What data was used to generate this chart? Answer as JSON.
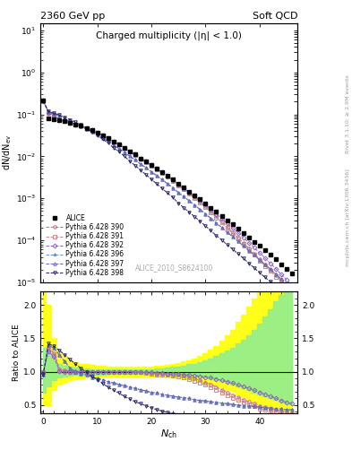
{
  "title_left": "2360 GeV pp",
  "title_right": "Soft QCD",
  "main_title": "Charged multiplicity (|η| < 1.0)",
  "ylabel_main": "dN/dN$_{ev}$",
  "ylabel_ratio": "Ratio to ALICE",
  "xlabel": "N_{ch}",
  "watermark": "ALICE_2010_S8624100",
  "right_label": "mcplots.cern.ch [arXiv:1306.3436]",
  "right_label2": "Rivet 3.1.10; ≥ 2.9M events",
  "ylim_main": [
    1e-05,
    15
  ],
  "ylim_ratio": [
    0.38,
    2.2
  ],
  "xlim": [
    -0.5,
    47
  ],
  "alice_x": [
    0,
    1,
    2,
    3,
    4,
    5,
    6,
    7,
    8,
    9,
    10,
    11,
    12,
    13,
    14,
    15,
    16,
    17,
    18,
    19,
    20,
    21,
    22,
    23,
    24,
    25,
    26,
    27,
    28,
    29,
    30,
    31,
    32,
    33,
    34,
    35,
    36,
    37,
    38,
    39,
    40,
    41,
    42,
    43,
    44,
    45,
    46
  ],
  "alice_y": [
    0.215,
    0.082,
    0.077,
    0.073,
    0.068,
    0.063,
    0.058,
    0.053,
    0.047,
    0.042,
    0.036,
    0.031,
    0.027,
    0.022,
    0.019,
    0.016,
    0.013,
    0.011,
    0.009,
    0.0075,
    0.0062,
    0.0051,
    0.0042,
    0.0034,
    0.0028,
    0.0022,
    0.0018,
    0.00145,
    0.00118,
    0.00095,
    0.00076,
    0.0006,
    0.00048,
    0.00038,
    0.0003,
    0.00024,
    0.00019,
    0.00015,
    0.000118,
    9.3e-05,
    7.3e-05,
    5.7e-05,
    4.5e-05,
    3.5e-05,
    2.7e-05,
    2.1e-05,
    1.6e-05
  ],
  "pythia_tunes": [
    {
      "label": "Pythia 6.428 390",
      "color": "#cc6688",
      "marker": "o",
      "linestyle": "--"
    },
    {
      "label": "Pythia 6.428 391",
      "color": "#cc8888",
      "marker": "s",
      "linestyle": "--"
    },
    {
      "label": "Pythia 6.428 392",
      "color": "#8866bb",
      "marker": "D",
      "linestyle": "--"
    },
    {
      "label": "Pythia 6.428 396",
      "color": "#6699bb",
      "marker": "*",
      "linestyle": "--"
    },
    {
      "label": "Pythia 6.428 397",
      "color": "#6666bb",
      "marker": "^",
      "linestyle": "--"
    },
    {
      "label": "Pythia 6.428 398",
      "color": "#222266",
      "marker": "v",
      "linestyle": "--"
    }
  ],
  "ratio_390": [
    1.0,
    1.35,
    1.28,
    1.04,
    1.02,
    1.01,
    1.01,
    1.0,
    1.0,
    1.0,
    1.0,
    1.0,
    1.0,
    1.0,
    1.0,
    1.0,
    1.0,
    0.99,
    0.99,
    0.99,
    0.98,
    0.97,
    0.97,
    0.96,
    0.96,
    0.95,
    0.94,
    0.92,
    0.9,
    0.87,
    0.84,
    0.81,
    0.77,
    0.73,
    0.69,
    0.65,
    0.62,
    0.58,
    0.55,
    0.52,
    0.49,
    0.47,
    0.45,
    0.43,
    0.41,
    0.39,
    0.38
  ],
  "ratio_391": [
    1.0,
    1.33,
    1.25,
    1.02,
    1.01,
    1.0,
    1.0,
    1.0,
    1.0,
    1.0,
    1.0,
    1.0,
    1.0,
    1.0,
    1.0,
    1.0,
    1.0,
    0.99,
    0.99,
    0.98,
    0.97,
    0.96,
    0.96,
    0.95,
    0.94,
    0.93,
    0.91,
    0.89,
    0.86,
    0.83,
    0.8,
    0.77,
    0.73,
    0.69,
    0.65,
    0.61,
    0.58,
    0.54,
    0.51,
    0.48,
    0.45,
    0.43,
    0.41,
    0.39,
    0.38,
    0.36,
    0.35
  ],
  "ratio_392": [
    1.0,
    1.3,
    1.22,
    1.01,
    1.0,
    1.0,
    1.0,
    1.0,
    1.0,
    1.0,
    1.0,
    1.0,
    1.0,
    1.0,
    1.0,
    1.0,
    1.0,
    1.0,
    0.99,
    0.99,
    0.99,
    0.98,
    0.98,
    0.97,
    0.97,
    0.97,
    0.96,
    0.95,
    0.94,
    0.93,
    0.92,
    0.91,
    0.89,
    0.87,
    0.85,
    0.83,
    0.8,
    0.78,
    0.75,
    0.72,
    0.69,
    0.66,
    0.63,
    0.6,
    0.57,
    0.54,
    0.52
  ],
  "ratio_396": [
    0.95,
    1.4,
    1.35,
    1.25,
    1.15,
    1.05,
    1.0,
    0.97,
    0.95,
    0.92,
    0.9,
    0.88,
    0.85,
    0.83,
    0.81,
    0.79,
    0.77,
    0.75,
    0.73,
    0.71,
    0.69,
    0.68,
    0.66,
    0.65,
    0.63,
    0.62,
    0.61,
    0.6,
    0.58,
    0.57,
    0.56,
    0.55,
    0.54,
    0.53,
    0.52,
    0.51,
    0.5,
    0.49,
    0.48,
    0.48,
    0.47,
    0.46,
    0.46,
    0.45,
    0.44,
    0.43,
    0.43
  ],
  "ratio_397": [
    0.95,
    1.4,
    1.35,
    1.25,
    1.15,
    1.05,
    1.0,
    0.97,
    0.95,
    0.92,
    0.9,
    0.88,
    0.85,
    0.83,
    0.81,
    0.79,
    0.77,
    0.75,
    0.73,
    0.71,
    0.69,
    0.68,
    0.66,
    0.65,
    0.63,
    0.62,
    0.61,
    0.6,
    0.58,
    0.57,
    0.56,
    0.55,
    0.54,
    0.53,
    0.52,
    0.51,
    0.5,
    0.49,
    0.48,
    0.48,
    0.47,
    0.46,
    0.46,
    0.45,
    0.44,
    0.43,
    0.43
  ],
  "ratio_398": [
    0.95,
    1.42,
    1.38,
    1.32,
    1.25,
    1.18,
    1.11,
    1.05,
    0.99,
    0.93,
    0.88,
    0.82,
    0.77,
    0.72,
    0.68,
    0.63,
    0.59,
    0.55,
    0.52,
    0.49,
    0.46,
    0.43,
    0.41,
    0.39,
    0.37,
    0.35,
    0.33,
    0.32,
    0.31,
    0.3,
    0.29,
    0.28,
    0.27,
    0.27,
    0.26,
    0.26,
    0.25,
    0.25,
    0.24,
    0.24,
    0.23,
    0.23,
    0.23,
    0.22,
    0.22,
    0.22,
    0.21
  ],
  "band_x": [
    0,
    1,
    2,
    3,
    4,
    5,
    6,
    7,
    8,
    9,
    10,
    11,
    12,
    13,
    14,
    15,
    16,
    17,
    18,
    19,
    20,
    21,
    22,
    23,
    24,
    25,
    26,
    27,
    28,
    29,
    30,
    31,
    32,
    33,
    34,
    35,
    36,
    37,
    38,
    39,
    40,
    41,
    42,
    43,
    44,
    45,
    46
  ],
  "band_yellow_lower": [
    0.5,
    0.5,
    0.72,
    0.8,
    0.84,
    0.87,
    0.89,
    0.9,
    0.91,
    0.92,
    0.92,
    0.93,
    0.93,
    0.93,
    0.93,
    0.93,
    0.93,
    0.93,
    0.93,
    0.93,
    0.93,
    0.93,
    0.93,
    0.92,
    0.92,
    0.91,
    0.9,
    0.89,
    0.88,
    0.86,
    0.84,
    0.82,
    0.79,
    0.76,
    0.73,
    0.7,
    0.66,
    0.62,
    0.58,
    0.54,
    0.51,
    0.48,
    0.45,
    0.42,
    0.4,
    0.38,
    0.36
  ],
  "band_yellow_upper": [
    2.2,
    2.0,
    1.5,
    1.3,
    1.22,
    1.17,
    1.14,
    1.12,
    1.11,
    1.1,
    1.09,
    1.09,
    1.08,
    1.08,
    1.08,
    1.07,
    1.07,
    1.07,
    1.08,
    1.08,
    1.08,
    1.09,
    1.09,
    1.1,
    1.11,
    1.13,
    1.15,
    1.17,
    1.2,
    1.24,
    1.28,
    1.33,
    1.39,
    1.46,
    1.54,
    1.63,
    1.74,
    1.85,
    1.98,
    2.1,
    2.2,
    2.2,
    2.2,
    2.2,
    2.2,
    2.2,
    2.2
  ],
  "band_green_lower": [
    0.68,
    0.78,
    0.88,
    0.91,
    0.93,
    0.94,
    0.95,
    0.95,
    0.96,
    0.96,
    0.96,
    0.96,
    0.97,
    0.97,
    0.97,
    0.97,
    0.97,
    0.97,
    0.97,
    0.97,
    0.97,
    0.97,
    0.97,
    0.97,
    0.96,
    0.96,
    0.95,
    0.95,
    0.94,
    0.93,
    0.91,
    0.9,
    0.88,
    0.86,
    0.83,
    0.81,
    0.78,
    0.75,
    0.72,
    0.69,
    0.66,
    0.63,
    0.6,
    0.58,
    0.55,
    0.53,
    0.51
  ],
  "band_green_upper": [
    1.35,
    1.28,
    1.18,
    1.12,
    1.09,
    1.07,
    1.06,
    1.05,
    1.05,
    1.04,
    1.04,
    1.04,
    1.03,
    1.03,
    1.03,
    1.03,
    1.03,
    1.03,
    1.03,
    1.04,
    1.04,
    1.05,
    1.05,
    1.06,
    1.07,
    1.08,
    1.09,
    1.11,
    1.12,
    1.14,
    1.17,
    1.2,
    1.23,
    1.27,
    1.31,
    1.36,
    1.42,
    1.48,
    1.55,
    1.63,
    1.72,
    1.82,
    1.93,
    2.05,
    2.15,
    2.2,
    2.2
  ]
}
